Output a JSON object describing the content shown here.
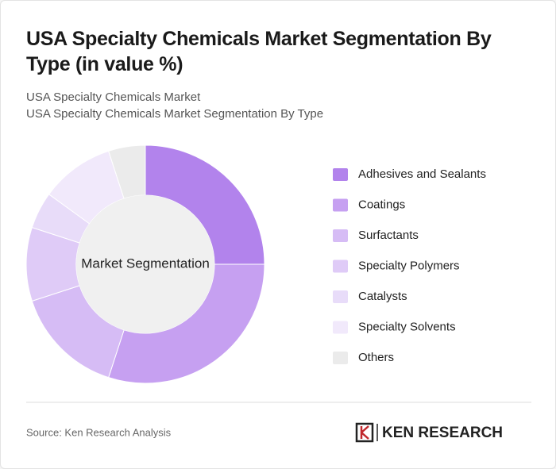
{
  "chart_data": {
    "type": "donut",
    "title": "USA Specialty Chemicals Market Segmentation By Type (in value %)",
    "subtitle": [
      "USA Specialty Chemicals Market",
      "USA Specialty Chemicals Market Segmentation By Type"
    ],
    "center_label": "Market Segmentation",
    "categories": [
      "Adhesives and Sealants",
      "Coatings",
      "Surfactants",
      "Specialty Polymers",
      "Catalysts",
      "Specialty Solvents",
      "Others"
    ],
    "values": [
      25,
      30,
      15,
      10,
      5,
      10,
      5
    ],
    "colors": [
      "#b283ec",
      "#c6a0f1",
      "#d6bcf5",
      "#dfcbf7",
      "#e8dcf9",
      "#f1e9fb",
      "#ebebeb"
    ],
    "source": "Source: Ken Research Analysis",
    "brand": "KEN RESEARCH"
  }
}
